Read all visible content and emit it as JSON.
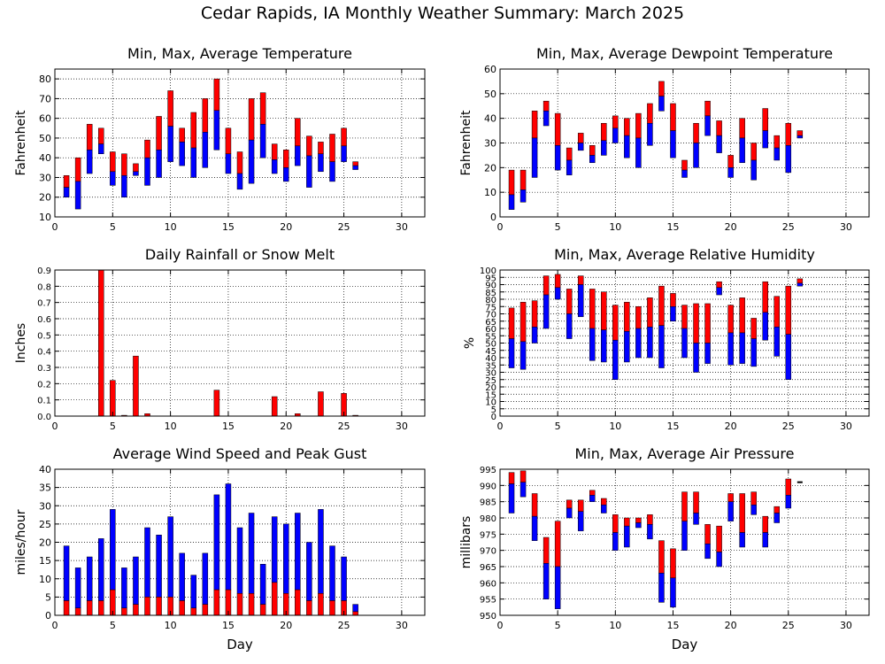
{
  "page_title": "Cedar Rapids, IA Monthly Weather Summary: March 2025",
  "colors": {
    "red": "#ff0000",
    "blue": "#0000ff",
    "black": "#000000"
  },
  "chart_data": [
    {
      "id": "temp",
      "type": "bar",
      "title": "Min, Max, Average Temperature",
      "ylabel": "Fahrenheit",
      "xlabel": "",
      "xlim": [
        0,
        32
      ],
      "xticks": [
        0,
        5,
        10,
        15,
        20,
        25,
        30
      ],
      "ylim": [
        10,
        85
      ],
      "yticks": [
        10,
        20,
        30,
        40,
        50,
        60,
        70,
        80
      ],
      "grid": true,
      "style": "range",
      "days": [
        1,
        2,
        3,
        4,
        5,
        6,
        7,
        8,
        9,
        10,
        11,
        12,
        13,
        14,
        15,
        16,
        17,
        18,
        19,
        20,
        21,
        22,
        23,
        24,
        25,
        26
      ],
      "min": [
        20,
        14,
        32,
        42,
        26,
        20,
        31,
        26,
        30,
        38,
        36,
        30,
        35,
        44,
        32,
        24,
        27,
        40,
        32,
        28,
        36,
        25,
        33,
        28,
        38,
        34
      ],
      "avg": [
        25,
        28,
        44,
        47,
        33,
        31,
        33,
        40,
        44,
        56,
        48,
        45,
        53,
        64,
        42,
        32,
        49,
        57,
        39,
        35,
        46,
        41,
        42,
        38,
        46,
        36
      ],
      "max": [
        31,
        40,
        57,
        55,
        43,
        42,
        37,
        49,
        61,
        74,
        55,
        63,
        70,
        80,
        55,
        43,
        70,
        73,
        47,
        44,
        60,
        51,
        48,
        52,
        55,
        38
      ]
    },
    {
      "id": "dewpoint",
      "type": "bar",
      "title": "Min, Max, Average Dewpoint Temperature",
      "ylabel": "Fahrenheit",
      "xlabel": "",
      "xlim": [
        0,
        32
      ],
      "xticks": [
        0,
        5,
        10,
        15,
        20,
        25,
        30
      ],
      "ylim": [
        0,
        60
      ],
      "yticks": [
        0,
        10,
        20,
        30,
        40,
        50,
        60
      ],
      "grid": true,
      "style": "range",
      "days": [
        1,
        2,
        3,
        4,
        5,
        6,
        7,
        8,
        9,
        10,
        11,
        12,
        13,
        14,
        15,
        16,
        17,
        18,
        19,
        20,
        21,
        22,
        23,
        24,
        25,
        26
      ],
      "min": [
        3,
        6,
        16,
        37,
        19,
        17,
        27,
        22,
        25,
        30,
        24,
        20,
        29,
        43,
        24,
        16,
        20,
        33,
        26,
        16,
        22,
        15,
        28,
        23,
        18,
        32
      ],
      "avg": [
        9,
        11,
        32,
        43,
        29,
        23,
        30,
        25,
        31,
        36,
        33,
        32,
        38,
        49,
        35,
        19,
        30,
        41,
        33,
        20,
        32,
        23,
        35,
        28,
        29,
        33
      ],
      "max": [
        19,
        19,
        43,
        47,
        42,
        28,
        34,
        29,
        38,
        41,
        40,
        42,
        46,
        55,
        46,
        23,
        38,
        47,
        39,
        25,
        40,
        30,
        44,
        33,
        38,
        35
      ]
    },
    {
      "id": "rain",
      "type": "bar",
      "title": "Daily Rainfall or Snow Melt",
      "ylabel": "Inches",
      "xlabel": "",
      "xlim": [
        0,
        32
      ],
      "xticks": [
        0,
        5,
        10,
        15,
        20,
        25,
        30
      ],
      "ylim": [
        0,
        0.9
      ],
      "yticks": [
        0.0,
        0.1,
        0.2,
        0.3,
        0.4,
        0.5,
        0.6,
        0.7,
        0.8,
        0.9
      ],
      "ytick_labels": [
        "0.0",
        "0.1",
        "0.2",
        "0.3",
        "0.4",
        "0.5",
        "0.6",
        "0.7",
        "0.8",
        "0.9"
      ],
      "grid": true,
      "style": "single",
      "days": [
        4,
        5,
        6,
        7,
        8,
        14,
        19,
        21,
        23,
        25,
        26
      ],
      "values": [
        0.9,
        0.22,
        0.005,
        0.37,
        0.015,
        0.16,
        0.12,
        0.015,
        0.15,
        0.14,
        0.005
      ]
    },
    {
      "id": "humidity",
      "type": "bar",
      "title": "Min, Max, Average Relative Humidity",
      "ylabel": "%",
      "xlabel": "",
      "xlim": [
        0,
        32
      ],
      "xticks": [
        0,
        5,
        10,
        15,
        20,
        25,
        30
      ],
      "ylim": [
        0,
        100
      ],
      "yticks": [
        0,
        5,
        10,
        15,
        20,
        25,
        30,
        35,
        40,
        45,
        50,
        55,
        60,
        65,
        70,
        75,
        80,
        85,
        90,
        95,
        100
      ],
      "grid": true,
      "style": "range",
      "days": [
        1,
        2,
        3,
        4,
        5,
        6,
        7,
        8,
        9,
        10,
        11,
        12,
        13,
        14,
        15,
        16,
        17,
        18,
        19,
        20,
        21,
        22,
        23,
        24,
        25,
        26
      ],
      "min": [
        33,
        32,
        50,
        60,
        80,
        53,
        68,
        38,
        37,
        25,
        37,
        40,
        40,
        33,
        65,
        40,
        30,
        36,
        83,
        35,
        36,
        34,
        52,
        41,
        25,
        89
      ],
      "avg": [
        53,
        51,
        61,
        83,
        88,
        70,
        90,
        60,
        59,
        52,
        58,
        60,
        61,
        62,
        75,
        60,
        50,
        50,
        88,
        57,
        57,
        53,
        71,
        61,
        56,
        91
      ],
      "max": [
        74,
        78,
        79,
        96,
        97,
        87,
        96,
        87,
        85,
        76,
        78,
        75,
        81,
        89,
        84,
        76,
        77,
        77,
        92,
        76,
        81,
        67,
        92,
        82,
        89,
        94
      ]
    },
    {
      "id": "wind",
      "type": "bar",
      "title": "Average Wind Speed and Peak Gust",
      "ylabel": "miles/hour",
      "xlabel": "Day",
      "xlim": [
        0,
        32
      ],
      "xticks": [
        0,
        5,
        10,
        15,
        20,
        25,
        30
      ],
      "ylim": [
        0,
        40
      ],
      "yticks": [
        0,
        5,
        10,
        15,
        20,
        25,
        30,
        35,
        40
      ],
      "grid": true,
      "style": "wind",
      "days": [
        1,
        2,
        3,
        4,
        5,
        6,
        7,
        8,
        9,
        10,
        11,
        12,
        13,
        14,
        15,
        16,
        17,
        18,
        19,
        20,
        21,
        22,
        23,
        24,
        25,
        26
      ],
      "avg": [
        4,
        2,
        4,
        4,
        7,
        2,
        3,
        5,
        5,
        5,
        4,
        2,
        3,
        7,
        7,
        6,
        6,
        3,
        9,
        6,
        7,
        4,
        6,
        4,
        4,
        1
      ],
      "gust": [
        19,
        13,
        16,
        21,
        29,
        13,
        16,
        24,
        22,
        27,
        17,
        11,
        17,
        33,
        36,
        24,
        28,
        14,
        27,
        25,
        28,
        20,
        29,
        19,
        16,
        3
      ]
    },
    {
      "id": "pressure",
      "type": "bar",
      "title": "Min, Max, Average Air Pressure",
      "ylabel": "millibars",
      "xlabel": "Day",
      "xlim": [
        0,
        32
      ],
      "xticks": [
        0,
        5,
        10,
        15,
        20,
        25,
        30
      ],
      "ylim": [
        950,
        995
      ],
      "yticks": [
        950,
        955,
        960,
        965,
        970,
        975,
        980,
        985,
        990,
        995
      ],
      "grid": true,
      "style": "range",
      "days": [
        1,
        2,
        3,
        4,
        5,
        6,
        7,
        8,
        9,
        10,
        11,
        12,
        13,
        14,
        15,
        16,
        17,
        18,
        19,
        20,
        21,
        22,
        23,
        24,
        25,
        26
      ],
      "min": [
        981.5,
        986.5,
        973,
        955,
        952,
        980,
        976,
        985,
        981.5,
        970,
        971,
        977,
        973.5,
        954,
        952.5,
        970,
        978,
        967.5,
        965,
        979,
        971,
        981,
        971,
        978.5,
        983,
        991
      ],
      "avg": [
        990.5,
        991,
        980.5,
        966,
        965,
        983,
        982,
        987,
        984,
        975.5,
        977.5,
        978.5,
        978,
        963,
        961.5,
        979,
        981.5,
        972,
        969.5,
        985,
        975.5,
        984,
        975.5,
        981.5,
        987,
        991
      ],
      "max": [
        994,
        994.5,
        987.5,
        974,
        979,
        985.5,
        985.5,
        988.5,
        986,
        981,
        980,
        980,
        981,
        973,
        970.5,
        988,
        988,
        978,
        977.5,
        987.5,
        987.5,
        988,
        980.5,
        983.5,
        992,
        991
      ]
    }
  ]
}
